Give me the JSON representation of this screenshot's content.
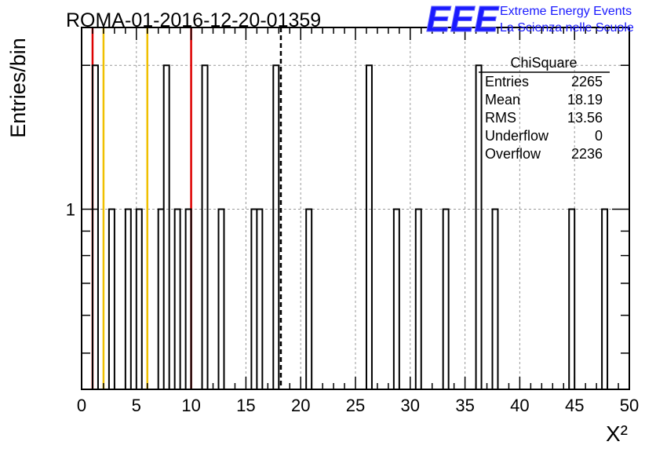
{
  "title": "ROMA-01-2016-12-20-01359",
  "logo": {
    "mark": "EEE",
    "line1": "Extreme Energy Events",
    "line2": "La Scienza nelle Scuole",
    "color": "#1a1aff"
  },
  "stats": {
    "name": "ChiSquare",
    "rows": [
      {
        "label": "Entries",
        "value": "2265"
      },
      {
        "label": "Mean",
        "value": "18.19"
      },
      {
        "label": "RMS",
        "value": "13.56"
      },
      {
        "label": "Underflow",
        "value": "0"
      },
      {
        "label": "Overflow",
        "value": "2236"
      }
    ]
  },
  "chart_data": {
    "type": "bar",
    "title": "ROMA-01-2016-12-20-01359",
    "xlabel": "X²",
    "ylabel": "Entries/bin",
    "xlim": [
      0,
      50
    ],
    "ylim": [
      0.42,
      2.4
    ],
    "log_y": true,
    "grid": true,
    "bin_width": 0.5,
    "x_ticks": [
      "0",
      "5",
      "10",
      "15",
      "20",
      "25",
      "30",
      "35",
      "40",
      "45",
      "50"
    ],
    "y_ticks": [
      "1"
    ],
    "bins": [
      {
        "x": 1.0,
        "y": 2
      },
      {
        "x": 2.5,
        "y": 1
      },
      {
        "x": 4.0,
        "y": 1
      },
      {
        "x": 5.0,
        "y": 1
      },
      {
        "x": 7.0,
        "y": 1
      },
      {
        "x": 7.5,
        "y": 2
      },
      {
        "x": 8.5,
        "y": 1
      },
      {
        "x": 9.5,
        "y": 1
      },
      {
        "x": 11.0,
        "y": 2
      },
      {
        "x": 12.5,
        "y": 1
      },
      {
        "x": 15.5,
        "y": 1
      },
      {
        "x": 16.0,
        "y": 1
      },
      {
        "x": 17.5,
        "y": 2
      },
      {
        "x": 20.5,
        "y": 1
      },
      {
        "x": 26.0,
        "y": 2
      },
      {
        "x": 28.5,
        "y": 1
      },
      {
        "x": 30.5,
        "y": 1
      },
      {
        "x": 33.0,
        "y": 1
      },
      {
        "x": 36.0,
        "y": 2
      },
      {
        "x": 37.5,
        "y": 1
      },
      {
        "x": 44.5,
        "y": 1
      },
      {
        "x": 47.5,
        "y": 1
      }
    ],
    "vlines": [
      {
        "x": 1,
        "color": "#dd0000",
        "style": "solid"
      },
      {
        "x": 2,
        "color": "#f0c000",
        "style": "solid"
      },
      {
        "x": 6,
        "color": "#f0c000",
        "style": "solid"
      },
      {
        "x": 10,
        "color": "#dd0000",
        "style": "solid"
      },
      {
        "x": 18.19,
        "color": "#000000",
        "style": "dashed"
      }
    ]
  }
}
